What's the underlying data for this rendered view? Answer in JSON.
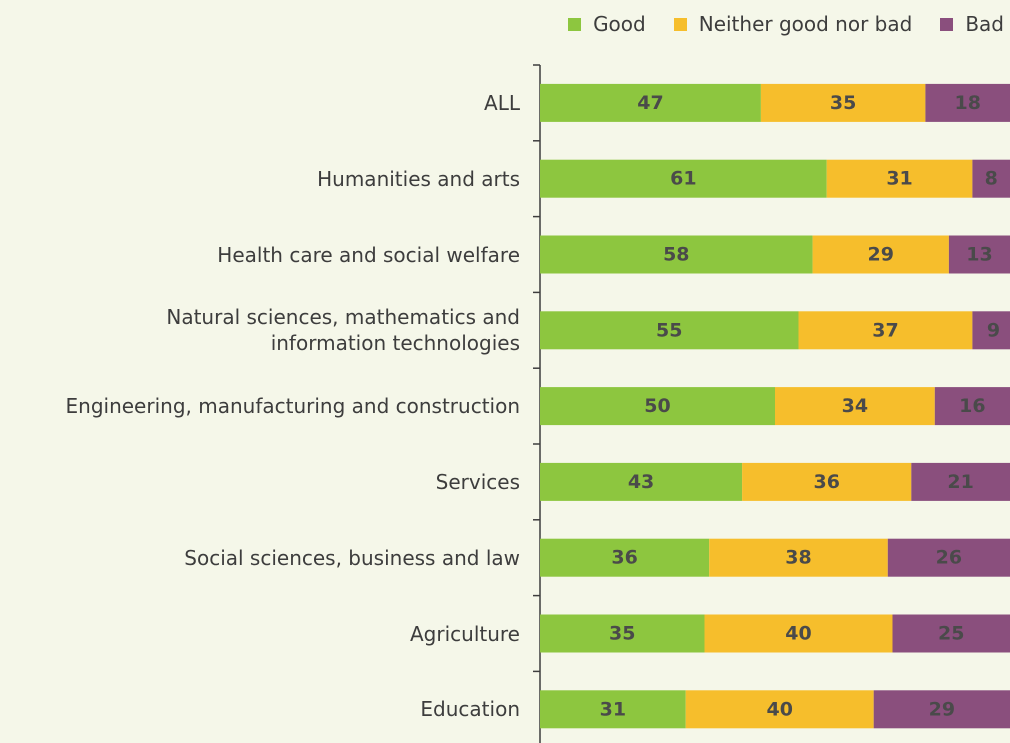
{
  "chart_data": {
    "type": "stacked-bar-horizontal",
    "categories": [
      "ALL",
      "Humanities and arts",
      "Health care and social welfare",
      "Natural sciences, mathematics and\ninformation technologies",
      "Engineering, manufacturing and construction",
      "Services",
      "Social sciences, business and law",
      "Agriculture",
      "Education"
    ],
    "series": [
      {
        "name": "Good",
        "color": "#8dc63f",
        "values": [
          47,
          61,
          58,
          55,
          50,
          43,
          36,
          35,
          31
        ]
      },
      {
        "name": "Neither good nor bad",
        "color": "#f6be2c",
        "values": [
          35,
          31,
          29,
          37,
          34,
          36,
          38,
          40,
          40
        ]
      },
      {
        "name": "Bad",
        "color": "#8a4f7d",
        "values": [
          18,
          8,
          13,
          9,
          16,
          21,
          26,
          25,
          29
        ]
      }
    ],
    "xlim": [
      0,
      100
    ]
  }
}
